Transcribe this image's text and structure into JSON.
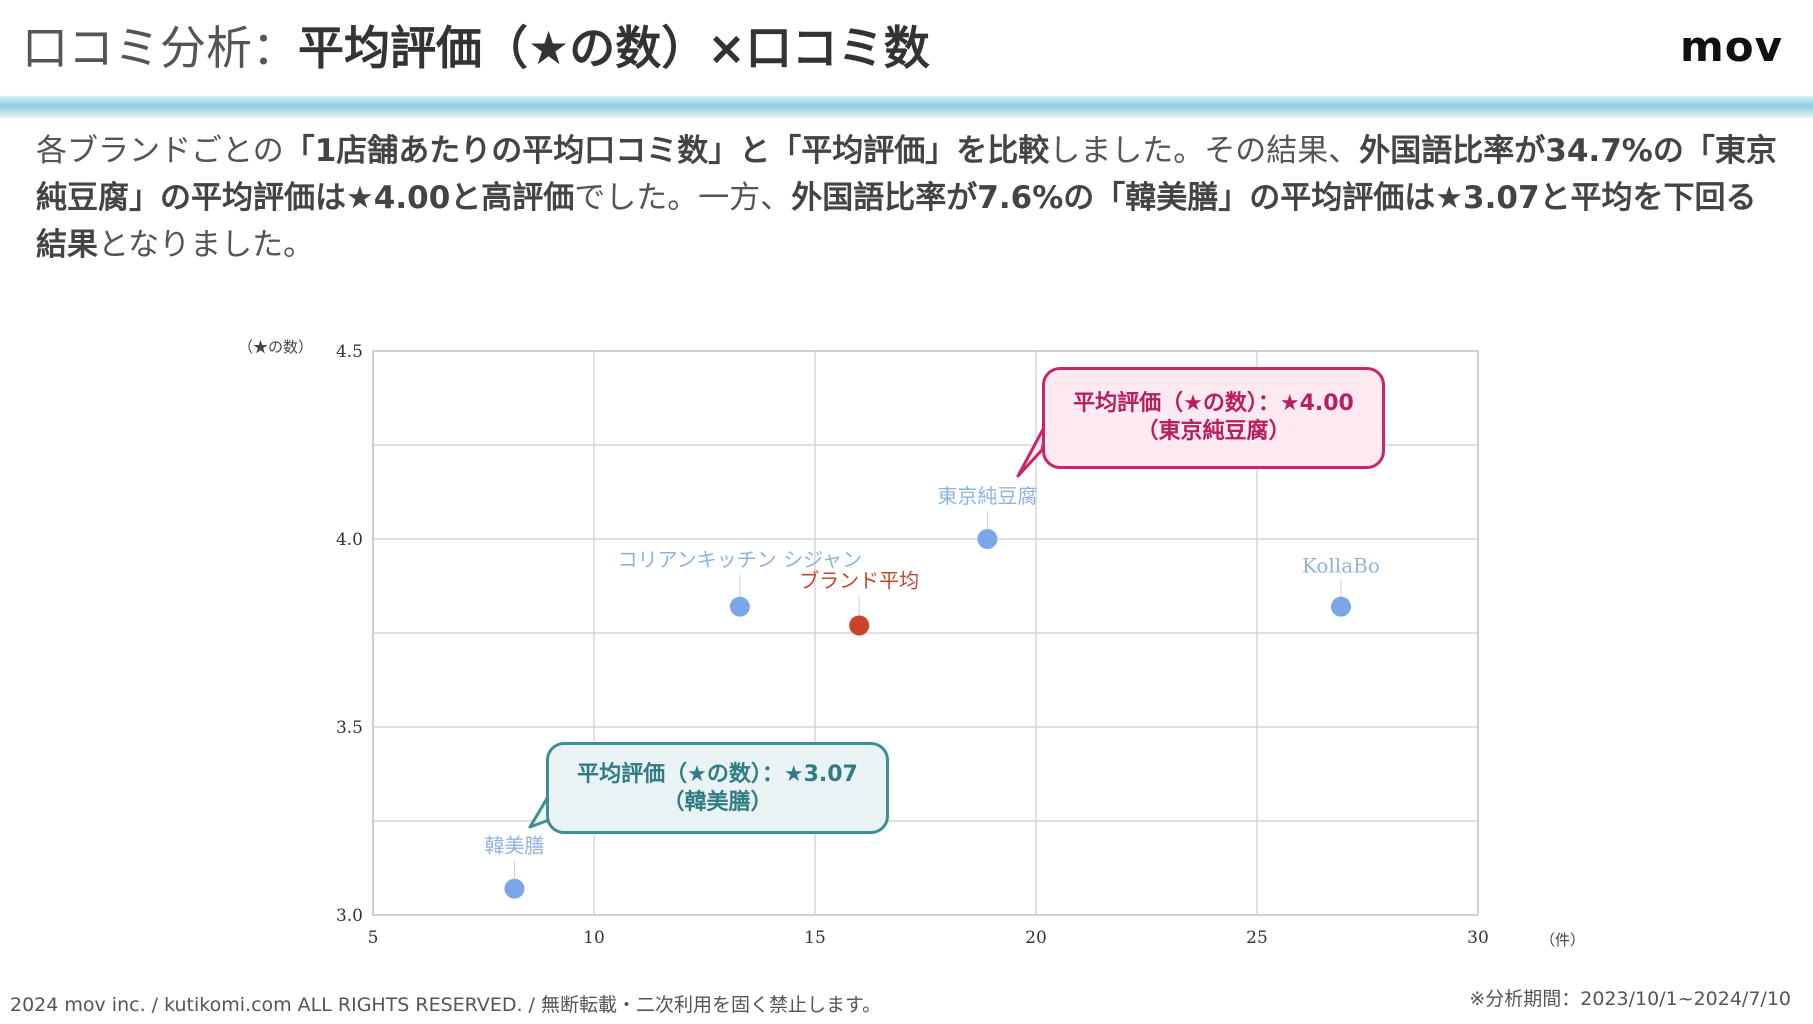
{
  "header": {
    "title_light": "口コミ分析：",
    "title_bold": "平均評価（★の数）×口コミ数",
    "logo": "mov"
  },
  "description": {
    "p1": "各ブランドごとの",
    "b1": "「1店舗あたりの平均口コミ数」と「平均評価」を比較",
    "p2": "しました。その結果、",
    "b2": "外国語比率が34.7%の「東京純豆腐」の平均評価は★4.00と高評価",
    "p3": "でした。一方、",
    "b3": "外国語比率が7.6%の「韓美膳」の平均評価は★3.07と平均を下回る結果",
    "p4": "となりました。"
  },
  "chart_data": {
    "type": "scatter",
    "xlabel": "（件）",
    "ylabel": "（★の数）",
    "xlim": [
      5,
      30
    ],
    "ylim": [
      3.0,
      4.5
    ],
    "x_ticks": [
      "5",
      "10",
      "15",
      "20",
      "25",
      "30"
    ],
    "y_ticks": [
      "3.0",
      "3.5",
      "4.0",
      "4.5"
    ],
    "grid": true,
    "points": [
      {
        "label": "コリアンキッチン シジャン",
        "x": 13.3,
        "y": 3.82,
        "color": "#7ba7e8",
        "label_color": "#8fb3e0"
      },
      {
        "label": "ブランド平均",
        "x": 16.0,
        "y": 3.77,
        "color": "#c9442b",
        "label_color": "#c9442b"
      },
      {
        "label": "東京純豆腐",
        "x": 18.9,
        "y": 4.0,
        "color": "#7ba7e8",
        "label_color": "#8fb3e0"
      },
      {
        "label": "KollaBo",
        "x": 26.9,
        "y": 3.82,
        "color": "#7ba7e8",
        "label_color": "#8fb3e0"
      },
      {
        "label": "韓美膳",
        "x": 8.2,
        "y": 3.07,
        "color": "#7ba7e8",
        "label_color": "#8fb3e0"
      }
    ],
    "annotations": [
      {
        "line1": "平均評価（★の数）：★4.00",
        "line2": "（東京純豆腐）"
      },
      {
        "line1": "平均評価（★の数）：★3.07",
        "line2": "（韓美膳）"
      }
    ]
  },
  "footer": {
    "copyright": "2024 mov inc. / kutikomi.com ALL RIGHTS RESERVED. / 無断転載・二次利用を固く禁止します。",
    "period": "※分析期間：2023/10/1~2024/7/10"
  },
  "colors": {
    "accent_pink": "#c8266b",
    "accent_teal": "#3e8f94",
    "point_blue": "#7ba7e8",
    "point_red": "#c9442b"
  }
}
